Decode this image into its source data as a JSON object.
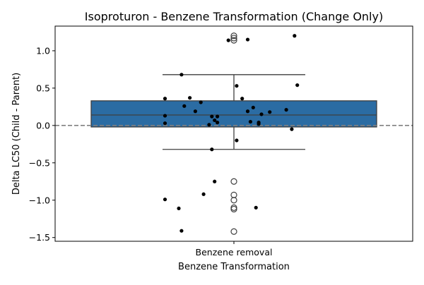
{
  "chart_data": {
    "type": "box",
    "title": "Isoproturon - Benzene Transformation (Change Only)",
    "xlabel": "Benzene Transformation",
    "ylabel": "Delta LC50 (Child - Parent)",
    "categories": [
      "Benzene removal"
    ],
    "ylim": [
      -1.55,
      1.33
    ],
    "yticks": [
      -1.5,
      -1.0,
      -0.5,
      0.0,
      0.5,
      1.0
    ],
    "ytick_labels": [
      "−1.5",
      "−1.0",
      "−0.5",
      "0.0",
      "0.5",
      "1.0"
    ],
    "reference_line": {
      "y": 0.0,
      "style": "dashed",
      "color": "#808080"
    },
    "box": {
      "q1": -0.02,
      "median": 0.14,
      "q3": 0.33,
      "whisker_low": -0.32,
      "whisker_high": 0.68,
      "color": "#2b6ca3"
    },
    "outliers": [
      1.2,
      1.17,
      1.14,
      -0.75,
      -0.93,
      -1.0,
      -1.1,
      -1.12,
      -1.42
    ],
    "points": [
      {
        "x": -0.01,
        "y": 1.14
      },
      {
        "x": 0.025,
        "y": 1.15
      },
      {
        "x": 0.11,
        "y": 1.2
      },
      {
        "x": -0.095,
        "y": 0.68
      },
      {
        "x": 0.115,
        "y": 0.54
      },
      {
        "x": 0.005,
        "y": 0.53
      },
      {
        "x": -0.125,
        "y": 0.36
      },
      {
        "x": -0.08,
        "y": 0.37
      },
      {
        "x": 0.015,
        "y": 0.36
      },
      {
        "x": -0.06,
        "y": 0.31
      },
      {
        "x": -0.09,
        "y": 0.26
      },
      {
        "x": 0.035,
        "y": 0.24
      },
      {
        "x": 0.095,
        "y": 0.21
      },
      {
        "x": -0.07,
        "y": 0.19
      },
      {
        "x": 0.025,
        "y": 0.19
      },
      {
        "x": 0.065,
        "y": 0.18
      },
      {
        "x": 0.05,
        "y": 0.15
      },
      {
        "x": -0.125,
        "y": 0.13
      },
      {
        "x": -0.04,
        "y": 0.12
      },
      {
        "x": -0.03,
        "y": 0.12
      },
      {
        "x": -0.035,
        "y": 0.07
      },
      {
        "x": -0.03,
        "y": 0.04
      },
      {
        "x": 0.03,
        "y": 0.05
      },
      {
        "x": 0.045,
        "y": 0.04
      },
      {
        "x": -0.125,
        "y": 0.03
      },
      {
        "x": -0.045,
        "y": 0.01
      },
      {
        "x": 0.045,
        "y": 0.02
      },
      {
        "x": 0.105,
        "y": -0.05
      },
      {
        "x": 0.005,
        "y": -0.2
      },
      {
        "x": -0.04,
        "y": -0.32
      },
      {
        "x": -0.035,
        "y": -0.75
      },
      {
        "x": -0.055,
        "y": -0.92
      },
      {
        "x": -0.125,
        "y": -0.99
      },
      {
        "x": -0.1,
        "y": -1.11
      },
      {
        "x": 0.04,
        "y": -1.1
      },
      {
        "x": -0.095,
        "y": -1.41
      }
    ]
  }
}
